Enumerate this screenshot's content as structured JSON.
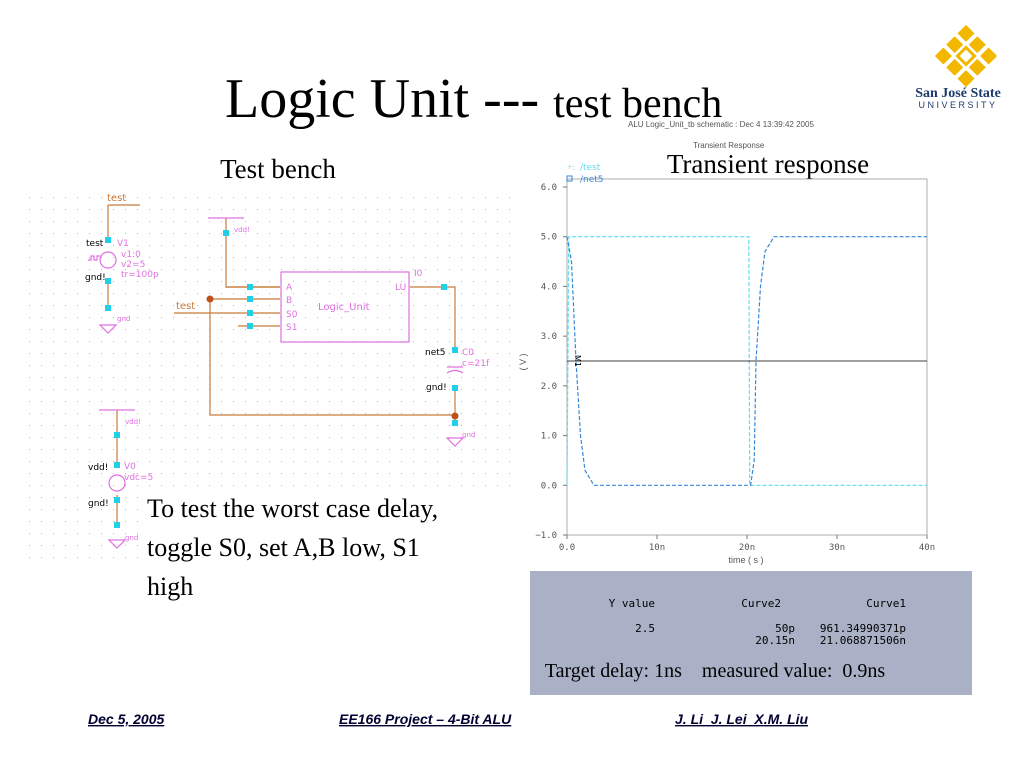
{
  "slide": {
    "title_main": "Logic Unit --- ",
    "title_sub": "test bench",
    "left_heading": "Test bench",
    "right_heading": "Transient response",
    "body": [
      "To test the worst case delay,",
      "toggle S0, set A,B low, S1",
      "high"
    ],
    "caption": "Target delay: 1ns    measured value:  0.9ns",
    "logo": {
      "name": "San José State",
      "sub": "UNIVERSITY"
    }
  },
  "footer": {
    "date": "Dec 5, 2005",
    "project": "EE166 Project – 4-Bit ALU",
    "authors": "J. Li  J. Lei  X.M. Liu"
  },
  "schematic": {
    "labels": [
      "test",
      "test",
      "V1",
      "v1:0",
      "v2=5",
      "tr=100p",
      "gnd!",
      "gnd",
      "vdd!",
      "A",
      "B",
      "S0",
      "S1",
      "LU",
      "Logic_Unit",
      "I0",
      "test",
      "net5",
      "C0",
      "c=21f",
      "gnd!",
      "gnd",
      "vdd!",
      "vdd!",
      "V0",
      "vdc=5",
      "gnd!",
      "gnd"
    ]
  },
  "chart_data": {
    "type": "line",
    "title": "ALU Logic_Unit_tb schematic : Dec  4 13:39:42 2005",
    "subtitle": "Transient Response",
    "x_label": "time ( s )",
    "y_label": "( V )",
    "xlim": [
      0,
      4e-08
    ],
    "xticks": [
      {
        "value": 0,
        "label": "0.0"
      },
      {
        "value": 1e-08,
        "label": "10n"
      },
      {
        "value": 2e-08,
        "label": "20n"
      },
      {
        "value": 3e-08,
        "label": "30n"
      },
      {
        "value": 4e-08,
        "label": "40n"
      }
    ],
    "ylim": [
      -1,
      6
    ],
    "yticks": [
      {
        "value": -1,
        "label": "−1.0"
      },
      {
        "value": 0,
        "label": "0.0"
      },
      {
        "value": 1,
        "label": "1.0"
      },
      {
        "value": 2,
        "label": "2.0"
      },
      {
        "value": 3,
        "label": "3.0"
      },
      {
        "value": 4,
        "label": "4.0"
      },
      {
        "value": 5,
        "label": "5.0"
      },
      {
        "value": 6,
        "label": "6.0"
      }
    ],
    "series": [
      {
        "name": "/test",
        "color": "#5fdcf0",
        "x": [
          0,
          2e-10,
          2.02e-08,
          2.03e-08,
          4e-08
        ],
        "values": [
          0,
          5,
          5,
          0,
          0
        ]
      },
      {
        "name": "/net5",
        "color": "#3a86d8",
        "x": [
          0,
          5e-10,
          1e-09,
          1.5e-09,
          2e-09,
          3e-09,
          2.04e-08,
          2.08e-08,
          2.1e-08,
          2.15e-08,
          2.2e-08,
          2.3e-08,
          4e-08
        ],
        "values": [
          5,
          4.5,
          2.5,
          1.0,
          0.3,
          0,
          0,
          0.5,
          2.5,
          4.0,
          4.7,
          5,
          5
        ]
      }
    ],
    "marker": {
      "label": "M1",
      "value": 2.5
    }
  },
  "table": {
    "header": [
      "Y value",
      "Curve2",
      "Curve1"
    ],
    "row": {
      "y": "2.5",
      "curve2": [
        "50p",
        "20.15n"
      ],
      "curve1": [
        "961.34990371p",
        "21.068871506n"
      ]
    }
  }
}
